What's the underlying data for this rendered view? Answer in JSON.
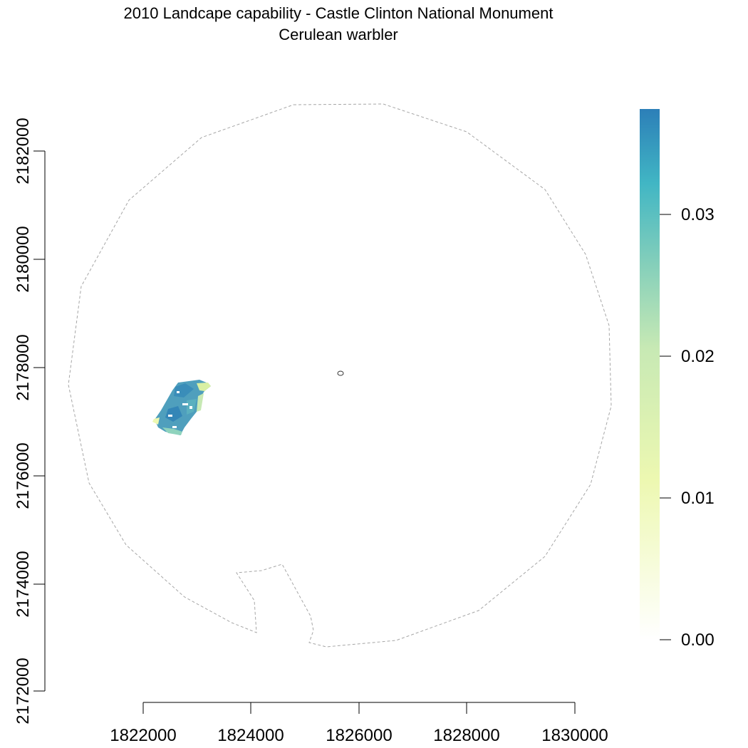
{
  "title": "2010 Landcape capability - Castle Clinton National Monument",
  "subtitle": "Cerulean warbler",
  "axes": {
    "x_ticks": [
      "1822000",
      "1824000",
      "1826000",
      "1828000",
      "1830000"
    ],
    "y_ticks": [
      "2172000",
      "2174000",
      "2176000",
      "2178000",
      "2180000",
      "2182000"
    ]
  },
  "legend": {
    "ticks": [
      "0.00",
      "0.01",
      "0.02",
      "0.03"
    ],
    "colors": [
      "#ffffff",
      "#edf8b1",
      "#7fcdbb",
      "#2c7fb8"
    ]
  },
  "map": {
    "boundary_style": "dashed grey",
    "outline_color": "#a6a6a6",
    "value_range": [
      0.0,
      0.037
    ]
  }
}
